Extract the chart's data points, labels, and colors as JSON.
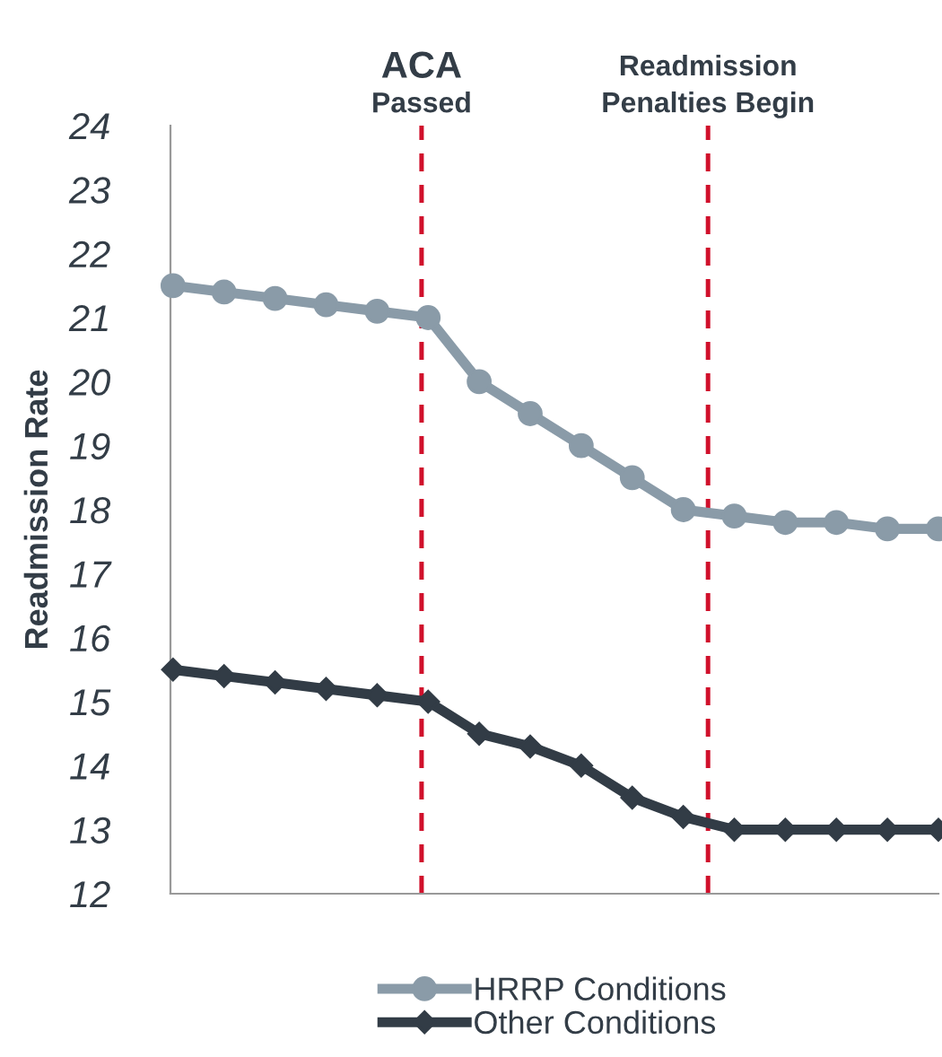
{
  "chart_data": {
    "type": "line",
    "ylabel": "Readmission Rate",
    "categories": [
      null,
      null,
      null,
      null,
      null,
      null,
      null,
      null,
      null,
      null,
      null,
      null,
      null,
      null,
      null,
      null
    ],
    "series": [
      {
        "name": "HRRP Conditions",
        "color": "#8a9ba8",
        "marker": "circle",
        "values": [
          21.5,
          21.4,
          21.3,
          21.2,
          21.1,
          21.0,
          20.0,
          19.5,
          19.0,
          18.5,
          18.0,
          17.9,
          17.8,
          17.8,
          17.7,
          17.7
        ]
      },
      {
        "name": "Other Conditions",
        "color": "#323c46",
        "marker": "diamond",
        "values": [
          15.5,
          15.4,
          15.3,
          15.2,
          15.1,
          15.0,
          14.5,
          14.3,
          14.0,
          13.5,
          13.2,
          13.0,
          13.0,
          13.0,
          13.0,
          13.0
        ]
      }
    ],
    "ylim": [
      12,
      24
    ],
    "yticks": [
      12,
      13,
      14,
      15,
      16,
      17,
      18,
      19,
      20,
      21,
      22,
      23,
      24
    ],
    "annotations": [
      "ACA\nPassed",
      "Readmission\nPenalties Begin"
    ],
    "grid": false,
    "legend": "bottom",
    "line_style": "solid"
  }
}
